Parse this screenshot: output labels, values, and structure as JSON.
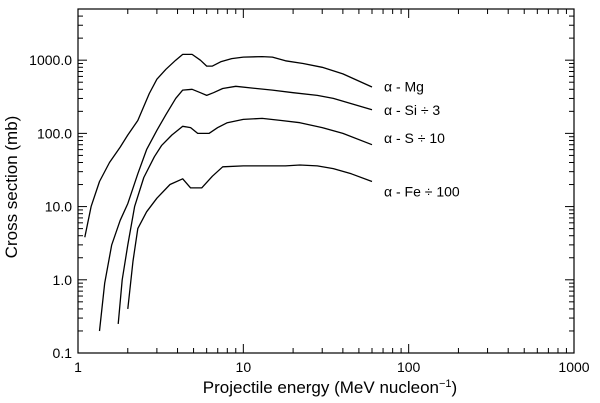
{
  "chart_data": {
    "type": "line",
    "xlabel": "Projectile energy (MeV nucleon",
    "xlabel_sup": "−1",
    "xlabel_close": ")",
    "ylabel": "Cross section (mb)",
    "x_scale": "log",
    "y_scale": "log",
    "xlim": [
      1,
      1000
    ],
    "ylim": [
      0.1,
      5000
    ],
    "x_ticks": [
      {
        "value": 1,
        "label": "1"
      },
      {
        "value": 10,
        "label": "10"
      },
      {
        "value": 100,
        "label": "100"
      },
      {
        "value": 1000,
        "label": "1000"
      }
    ],
    "y_ticks": [
      {
        "value": 0.1,
        "label": "0.1"
      },
      {
        "value": 1,
        "label": "1.0"
      },
      {
        "value": 10,
        "label": "10.0"
      },
      {
        "value": 100,
        "label": "100.0"
      },
      {
        "value": 1000,
        "label": "1000.0"
      }
    ],
    "grid": false,
    "series": [
      {
        "name": "α - Mg",
        "points": [
          [
            1.1,
            3.8
          ],
          [
            1.2,
            10
          ],
          [
            1.35,
            22
          ],
          [
            1.55,
            40
          ],
          [
            1.8,
            65
          ],
          [
            2.0,
            95
          ],
          [
            2.3,
            150
          ],
          [
            2.7,
            350
          ],
          [
            3.0,
            550
          ],
          [
            3.4,
            750
          ],
          [
            3.9,
            1000
          ],
          [
            4.3,
            1200
          ],
          [
            4.9,
            1200
          ],
          [
            5.5,
            1000
          ],
          [
            6.0,
            830
          ],
          [
            6.5,
            830
          ],
          [
            7.3,
            950
          ],
          [
            8.5,
            1050
          ],
          [
            10,
            1100
          ],
          [
            13,
            1120
          ],
          [
            15,
            1100
          ],
          [
            18,
            980
          ],
          [
            23,
            900
          ],
          [
            30,
            800
          ],
          [
            40,
            650
          ],
          [
            60,
            430
          ]
        ],
        "label_value": [
          60,
          440
        ]
      },
      {
        "name": "α - Si ÷ 3",
        "points": [
          [
            1.35,
            0.2
          ],
          [
            1.45,
            0.9
          ],
          [
            1.6,
            3.0
          ],
          [
            1.8,
            6.5
          ],
          [
            2.0,
            11
          ],
          [
            2.3,
            28
          ],
          [
            2.6,
            60
          ],
          [
            3.0,
            110
          ],
          [
            3.4,
            180
          ],
          [
            3.9,
            300
          ],
          [
            4.3,
            390
          ],
          [
            4.9,
            400
          ],
          [
            5.5,
            360
          ],
          [
            6.0,
            330
          ],
          [
            6.6,
            360
          ],
          [
            7.5,
            410
          ],
          [
            9,
            440
          ],
          [
            12,
            410
          ],
          [
            15,
            390
          ],
          [
            20,
            360
          ],
          [
            28,
            330
          ],
          [
            35,
            300
          ],
          [
            60,
            210
          ]
        ],
        "label_value": [
          60,
          210
        ]
      },
      {
        "name": "α - S ÷ 10",
        "points": [
          [
            1.75,
            0.25
          ],
          [
            1.85,
            1.0
          ],
          [
            2.0,
            3.0
          ],
          [
            2.2,
            10
          ],
          [
            2.5,
            25
          ],
          [
            2.9,
            48
          ],
          [
            3.2,
            68
          ],
          [
            3.7,
            95
          ],
          [
            4.3,
            125
          ],
          [
            4.8,
            120
          ],
          [
            5.3,
            100
          ],
          [
            6.2,
            100
          ],
          [
            7.0,
            120
          ],
          [
            8.0,
            140
          ],
          [
            10,
            155
          ],
          [
            13,
            160
          ],
          [
            17,
            150
          ],
          [
            22,
            140
          ],
          [
            30,
            120
          ],
          [
            40,
            100
          ],
          [
            60,
            70
          ]
        ],
        "label_value": [
          60,
          86
        ]
      },
      {
        "name": "α - Fe ÷ 100",
        "points": [
          [
            2.0,
            0.4
          ],
          [
            2.15,
            1.8
          ],
          [
            2.3,
            5.0
          ],
          [
            2.6,
            8.5
          ],
          [
            3.0,
            13
          ],
          [
            3.6,
            20
          ],
          [
            4.3,
            24
          ],
          [
            4.8,
            18
          ],
          [
            5.6,
            18
          ],
          [
            6.5,
            26
          ],
          [
            7.5,
            35
          ],
          [
            10,
            36
          ],
          [
            14,
            36
          ],
          [
            18,
            36
          ],
          [
            22,
            37
          ],
          [
            28,
            36
          ],
          [
            35,
            33
          ],
          [
            45,
            28
          ],
          [
            60,
            22
          ]
        ],
        "label_value": [
          60,
          16
        ]
      }
    ]
  }
}
